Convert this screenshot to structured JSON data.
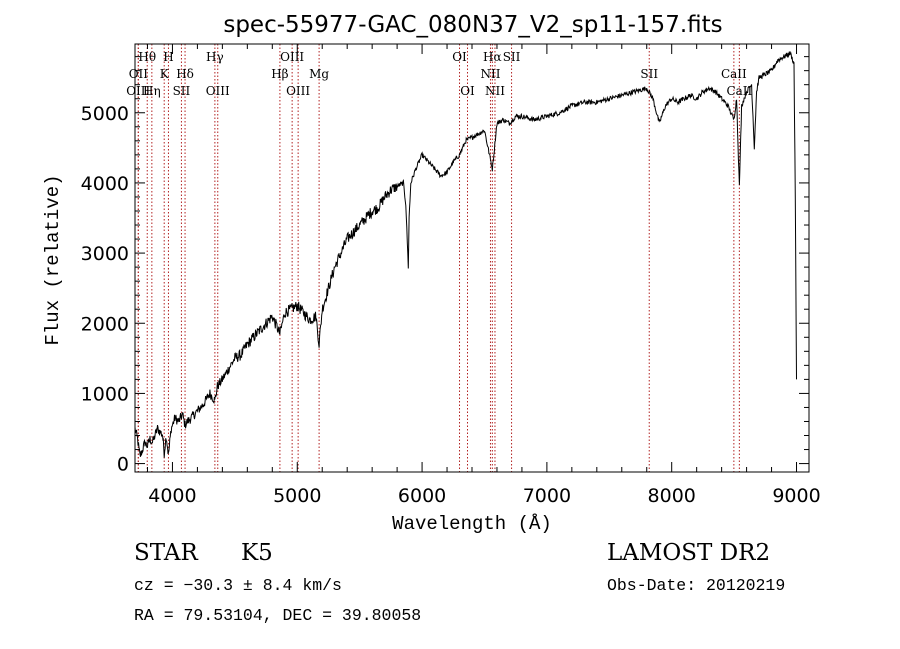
{
  "chart_data": {
    "type": "line",
    "title": "spec-55977-GAC_080N37_V2_sp11-157.fits",
    "xlabel": "Wavelength (Å)",
    "ylabel": "Flux (relative)",
    "xlim": [
      3700,
      9100
    ],
    "ylim": [
      -120,
      5980
    ],
    "x_ticks": [
      4000,
      5000,
      6000,
      7000,
      8000,
      9000
    ],
    "y_ticks": [
      0,
      1000,
      2000,
      3000,
      4000,
      5000
    ],
    "grid": false,
    "spectrum": {
      "x": [
        3700,
        3720,
        3740,
        3760,
        3780,
        3800,
        3820,
        3840,
        3860,
        3880,
        3900,
        3920,
        3934,
        3950,
        3968,
        3990,
        4020,
        4050,
        4080,
        4101,
        4120,
        4150,
        4200,
        4250,
        4300,
        4340,
        4360,
        4400,
        4450,
        4500,
        4550,
        4600,
        4650,
        4700,
        4750,
        4800,
        4861,
        4900,
        4950,
        5000,
        5050,
        5100,
        5150,
        5175,
        5200,
        5250,
        5300,
        5350,
        5400,
        5450,
        5500,
        5550,
        5600,
        5650,
        5700,
        5750,
        5800,
        5850,
        5870,
        5890,
        5896,
        5910,
        5950,
        6000,
        6050,
        6100,
        6150,
        6200,
        6250,
        6300,
        6350,
        6400,
        6450,
        6500,
        6563,
        6600,
        6650,
        6700,
        6750,
        6800,
        6900,
        7000,
        7100,
        7200,
        7300,
        7400,
        7500,
        7600,
        7700,
        7800,
        7850,
        7900,
        7950,
        8000,
        8050,
        8100,
        8150,
        8200,
        8250,
        8300,
        8350,
        8400,
        8450,
        8498,
        8520,
        8542,
        8560,
        8600,
        8640,
        8662,
        8680,
        8700,
        8750,
        8800,
        8850,
        8900,
        8950,
        8980,
        8990,
        9000
      ],
      "y": [
        500,
        350,
        100,
        200,
        300,
        250,
        350,
        300,
        400,
        500,
        450,
        420,
        150,
        400,
        120,
        500,
        650,
        600,
        700,
        550,
        600,
        650,
        750,
        850,
        1000,
        900,
        1100,
        1200,
        1350,
        1500,
        1550,
        1700,
        1800,
        1900,
        2000,
        2100,
        1850,
        2150,
        2200,
        2250,
        2150,
        2050,
        2100,
        1700,
        2200,
        2500,
        2800,
        3000,
        3200,
        3300,
        3400,
        3500,
        3600,
        3650,
        3800,
        3900,
        3950,
        4000,
        3700,
        2800,
        3500,
        4000,
        4200,
        4400,
        4300,
        4200,
        4100,
        4150,
        4300,
        4400,
        4600,
        4650,
        4700,
        4750,
        4200,
        4850,
        4900,
        4850,
        4950,
        4950,
        4900,
        4950,
        5000,
        5100,
        5150,
        5150,
        5200,
        5250,
        5300,
        5350,
        5200,
        4850,
        5100,
        5200,
        5150,
        5200,
        5250,
        5200,
        5300,
        5350,
        5300,
        5200,
        5100,
        4900,
        5200,
        3950,
        5100,
        5300,
        5400,
        4500,
        5300,
        5500,
        5550,
        5600,
        5750,
        5800,
        5850,
        5700,
        3800,
        1200
      ]
    },
    "lines": [
      {
        "label": "Hθ",
        "x": 3798,
        "row": 1
      },
      {
        "label": "OII",
        "x": 3727,
        "row": 2
      },
      {
        "label": "OIII",
        "x": 3726,
        "row": 3
      },
      {
        "label": "Hη",
        "x": 3835,
        "row": 3
      },
      {
        "label": "H",
        "x": 3968,
        "row": 1
      },
      {
        "label": "K",
        "x": 3934,
        "row": 2
      },
      {
        "label": "Hδ",
        "x": 4101,
        "row": 2
      },
      {
        "label": "SII",
        "x": 4072,
        "row": 3
      },
      {
        "label": "Hγ",
        "x": 4340,
        "row": 1
      },
      {
        "label": "OIII",
        "x": 4363,
        "row": 3
      },
      {
        "label": "OIII",
        "x": 4959,
        "row": 1
      },
      {
        "label": "Hβ",
        "x": 4861,
        "row": 2
      },
      {
        "label": "OIII",
        "x": 5007,
        "row": 3
      },
      {
        "label": "Mg",
        "x": 5175,
        "row": 2
      },
      {
        "label": "OI",
        "x": 6300,
        "row": 1
      },
      {
        "label": "OI",
        "x": 6364,
        "row": 3
      },
      {
        "label": "Hα",
        "x": 6563,
        "row": 1
      },
      {
        "label": "NII",
        "x": 6548,
        "row": 2
      },
      {
        "label": "NII",
        "x": 6584,
        "row": 3
      },
      {
        "label": "SII",
        "x": 6717,
        "row": 1
      },
      {
        "label": "SII",
        "x": 7820,
        "row": 2
      },
      {
        "label": "CaII",
        "x": 8498,
        "row": 2
      },
      {
        "label": "CaII",
        "x": 8542,
        "row": 3
      }
    ]
  },
  "info": {
    "object_class": "STAR",
    "subclass": "K5",
    "survey": "LAMOST DR2",
    "redshift": "cz = −30.3 ± 8.4 km/s",
    "obs_date": "Obs-Date: 20120219",
    "coords": "RA =  79.53104, DEC =  39.80058"
  }
}
